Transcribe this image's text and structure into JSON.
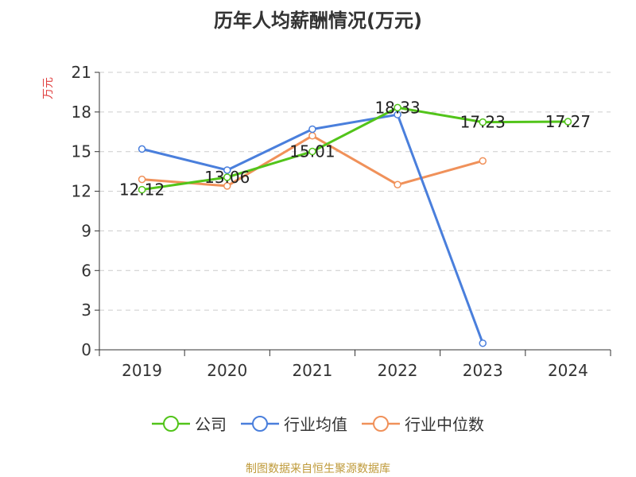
{
  "chart_data": {
    "type": "line",
    "title": "历年人均薪酬情况(万元)",
    "ylabel": "万元",
    "xlabel": "",
    "categories": [
      "2019",
      "2020",
      "2021",
      "2022",
      "2023",
      "2024"
    ],
    "yticks": [
      0,
      3,
      6,
      9,
      12,
      15,
      18,
      21
    ],
    "ylim": [
      0,
      21
    ],
    "grid": true,
    "legend_position": "bottom",
    "series": [
      {
        "name": "公司",
        "color": "#52c41a",
        "values": [
          12.12,
          13.06,
          15.01,
          18.33,
          17.23,
          17.27
        ],
        "labels": [
          "12.12",
          "13.06",
          "15.01",
          "18.33",
          "17.23",
          "17.27"
        ]
      },
      {
        "name": "行业均值",
        "color": "#4a7fdc",
        "values": [
          15.2,
          13.6,
          16.7,
          17.8,
          0.5,
          null
        ]
      },
      {
        "name": "行业中位数",
        "color": "#f0915a",
        "values": [
          12.9,
          12.4,
          16.2,
          12.5,
          14.3,
          null
        ]
      }
    ]
  },
  "source": "制图数据来自恒生聚源数据库",
  "ylabel_color": "#e04040"
}
